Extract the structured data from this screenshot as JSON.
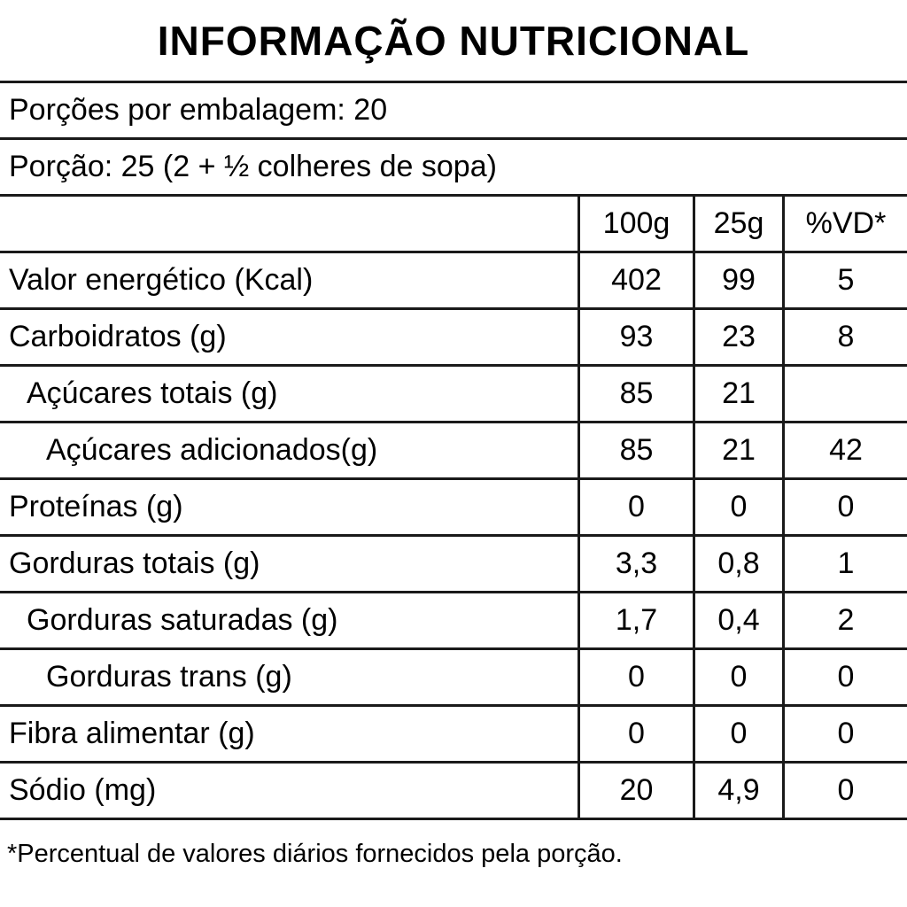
{
  "title": "INFORMAÇÃO NUTRICIONAL",
  "servings_per_package": "Porções por embalagem: 20",
  "serving_size": "Porção: 25 (2 + ½ colheres de sopa)",
  "table": {
    "columns": [
      "100g",
      "25g",
      "%VD*"
    ],
    "rows": [
      {
        "label": "Valor energético (Kcal)",
        "per100g": "402",
        "per25g": "99",
        "vd": "5"
      },
      {
        "label": "Carboidratos (g)",
        "per100g": "93",
        "per25g": "23",
        "vd": "8"
      },
      {
        "label": "Açúcares totais (g)",
        "per100g": "85",
        "per25g": "21",
        "vd": ""
      },
      {
        "label": "Açúcares adicionados(g)",
        "per100g": "85",
        "per25g": "21",
        "vd": "42"
      },
      {
        "label": "Proteínas (g)",
        "per100g": "0",
        "per25g": "0",
        "vd": "0"
      },
      {
        "label": "Gorduras totais (g)",
        "per100g": "3,3",
        "per25g": "0,8",
        "vd": "1"
      },
      {
        "label": "Gorduras saturadas (g)",
        "per100g": "1,7",
        "per25g": "0,4",
        "vd": "2"
      },
      {
        "label": "Gorduras trans (g)",
        "per100g": "0",
        "per25g": "0",
        "vd": "0"
      },
      {
        "label": "Fibra alimentar (g)",
        "per100g": "0",
        "per25g": "0",
        "vd": "0"
      },
      {
        "label": "Sódio (mg)",
        "per100g": "20",
        "per25g": "4,9",
        "vd": "0"
      }
    ]
  },
  "footnote": "*Percentual de valores diários fornecidos pela porção.",
  "colors": {
    "text": "#000000",
    "line": "#1a1a1a",
    "background": "#ffffff"
  }
}
